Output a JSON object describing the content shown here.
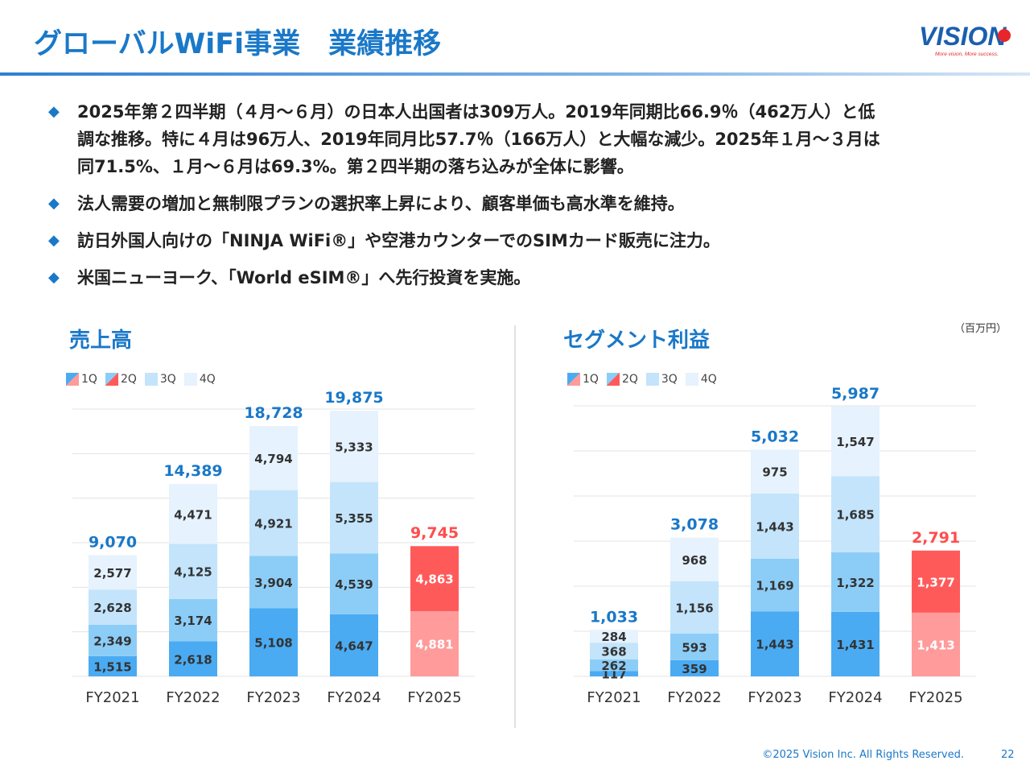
{
  "header": {
    "title": "グローバルWiFi事業　業績推移",
    "logo_text": "VISION",
    "logo_tagline": "More vision, More success."
  },
  "bullets": [
    "2025年第２四半期（４月～６月）の日本人出国者は309万人。2019年同期比66.9％（462万人）と低\n調な推移。特に４月は96万人、2019年同月比57.7％（166万人）と大幅な減少。2025年１月～３月は\n同71.5%、１月～６月は69.3%。第２四半期の落ち込みが全体に影響。",
    "法人需要の増加と無制限プランの選択率上昇により、顧客単価も高水準を維持。",
    "訪日外国人向けの「NINJA WiFi®」や空港カウンターでのSIMカード販売に注力。",
    "米国ニューヨーク、「World eSIM®」へ先行投資を実施。"
  ],
  "unit_label": "（百万円）",
  "colors": {
    "accent": "#1a78c8",
    "q1": "#4aabf2",
    "q2": "#8ccdf7",
    "q3": "#c3e4fb",
    "q4": "#e6f2fd",
    "fy2025_q1": "#ff9b9b",
    "fy2025_q2": "#ff5a5a",
    "highlight_total": "#ff4d4d",
    "total": "#1a78c8"
  },
  "legend": [
    "1Q",
    "2Q",
    "3Q",
    "4Q"
  ],
  "footer": {
    "copyright": "©2025 Vision Inc. All Rights Reserved.",
    "page": "22"
  },
  "chart_data": [
    {
      "type": "bar",
      "stacked": true,
      "title": "売上高",
      "categories": [
        "FY2021",
        "FY2022",
        "FY2023",
        "FY2024",
        "FY2025"
      ],
      "series": [
        {
          "name": "1Q",
          "values": [
            1515,
            2618,
            5108,
            4647,
            4881
          ]
        },
        {
          "name": "2Q",
          "values": [
            2349,
            3174,
            3904,
            4539,
            4863
          ]
        },
        {
          "name": "3Q",
          "values": [
            2628,
            4125,
            4921,
            5355,
            null
          ]
        },
        {
          "name": "4Q",
          "values": [
            2577,
            4471,
            4794,
            5333,
            null
          ]
        }
      ],
      "value_labels": [
        [
          "1,515",
          "2,349",
          "2,628",
          "2,577"
        ],
        [
          "2,618",
          "3,174",
          "4,125",
          "4,471"
        ],
        [
          "5,108",
          "3,904",
          "4,921",
          "4,794"
        ],
        [
          "4,647",
          "4,539",
          "5,355",
          "5,333"
        ],
        [
          "4,881",
          "4,863",
          null,
          null
        ]
      ],
      "totals": [
        "9,070",
        "14,389",
        "18,728",
        "19,875",
        "9,745"
      ],
      "ylim": [
        0,
        20000
      ],
      "grid": true
    },
    {
      "type": "bar",
      "stacked": true,
      "title": "セグメント利益",
      "categories": [
        "FY2021",
        "FY2022",
        "FY2023",
        "FY2024",
        "FY2025"
      ],
      "series": [
        {
          "name": "1Q",
          "values": [
            117,
            359,
            1443,
            1431,
            1413
          ]
        },
        {
          "name": "2Q",
          "values": [
            262,
            593,
            1169,
            1322,
            1377
          ]
        },
        {
          "name": "3Q",
          "values": [
            368,
            1156,
            1443,
            1685,
            null
          ]
        },
        {
          "name": "4Q",
          "values": [
            284,
            968,
            975,
            1547,
            null
          ]
        }
      ],
      "value_labels": [
        [
          "117",
          "262",
          "368",
          "284"
        ],
        [
          "359",
          "593",
          "1,156",
          "968"
        ],
        [
          "1,443",
          "1,169",
          "1,443",
          "975"
        ],
        [
          "1,431",
          "1,322",
          "1,685",
          "1,547"
        ],
        [
          "1,413",
          "1,377",
          null,
          null
        ]
      ],
      "totals": [
        "1,033",
        "3,078",
        "5,032",
        "5,987",
        "2,791"
      ],
      "ylim": [
        0,
        6000
      ],
      "grid": true
    }
  ]
}
